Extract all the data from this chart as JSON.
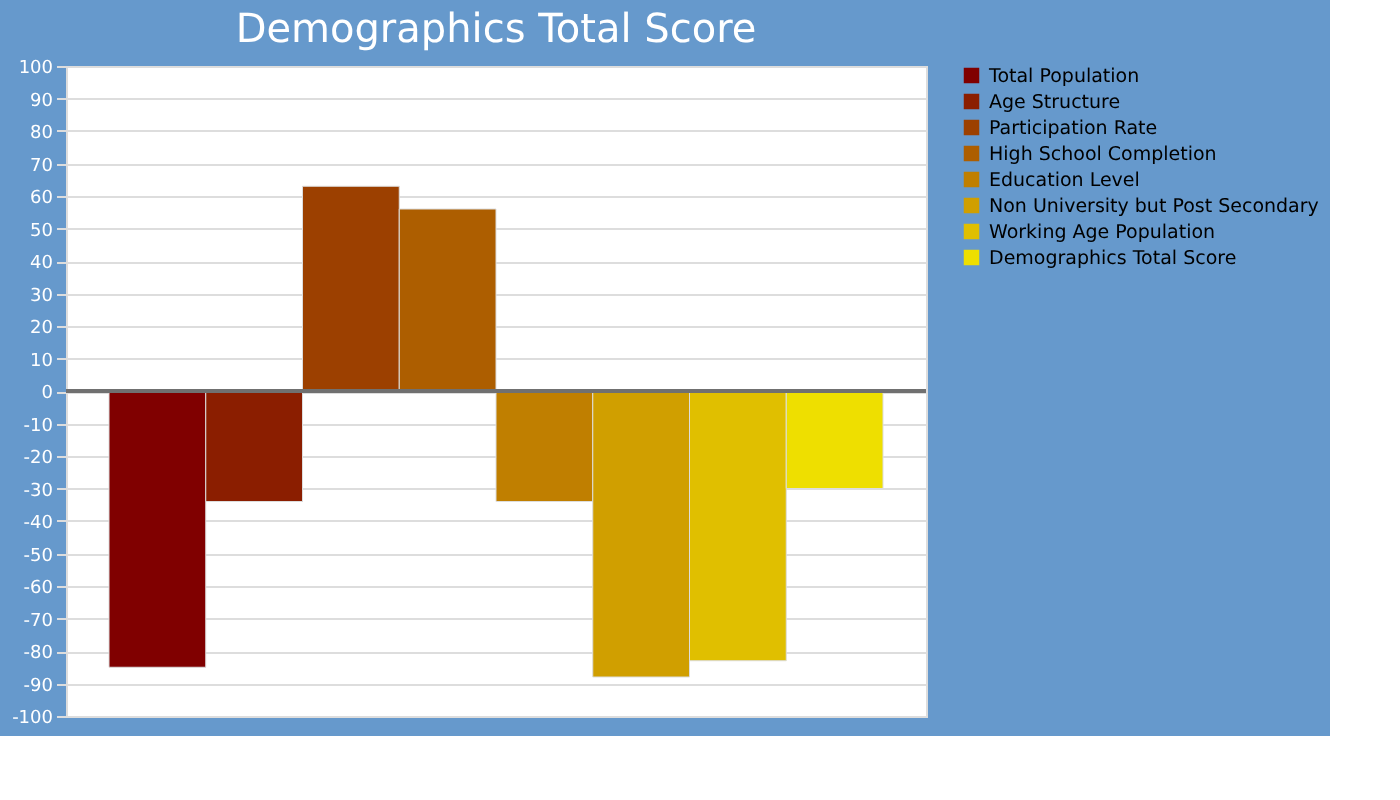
{
  "chart_data": {
    "type": "bar",
    "title": "Demographics Total Score",
    "categories": [
      null
    ],
    "series": [
      {
        "name": "Total Population",
        "color": "#800000",
        "values": [
          -85
        ]
      },
      {
        "name": "Age Structure",
        "color": "#8b1e00",
        "values": [
          -34
        ]
      },
      {
        "name": "Participation Rate",
        "color": "#9c4000",
        "values": [
          63
        ]
      },
      {
        "name": "High School Completion",
        "color": "#ad5e00",
        "values": [
          56
        ]
      },
      {
        "name": "Education Level",
        "color": "#c07f00",
        "values": [
          -34
        ]
      },
      {
        "name": "Non University but Post Secondary",
        "color": "#d09f00",
        "values": [
          -88
        ]
      },
      {
        "name": "Working Age Population",
        "color": "#e0bf00",
        "values": [
          -83
        ]
      },
      {
        "name": "Demographics Total Score",
        "color": "#eedf00",
        "values": [
          -30
        ]
      }
    ],
    "ylim": [
      -100,
      100
    ],
    "yticks": [
      -100,
      -90,
      -80,
      -70,
      -60,
      -50,
      -40,
      -30,
      -20,
      -10,
      0,
      10,
      20,
      30,
      40,
      50,
      60,
      70,
      80,
      90,
      100
    ],
    "ref_lines": [
      {
        "axis": "y",
        "value": 0,
        "color": "#707070"
      }
    ],
    "grid": "y",
    "legend": "right",
    "tick_labels": "y"
  }
}
